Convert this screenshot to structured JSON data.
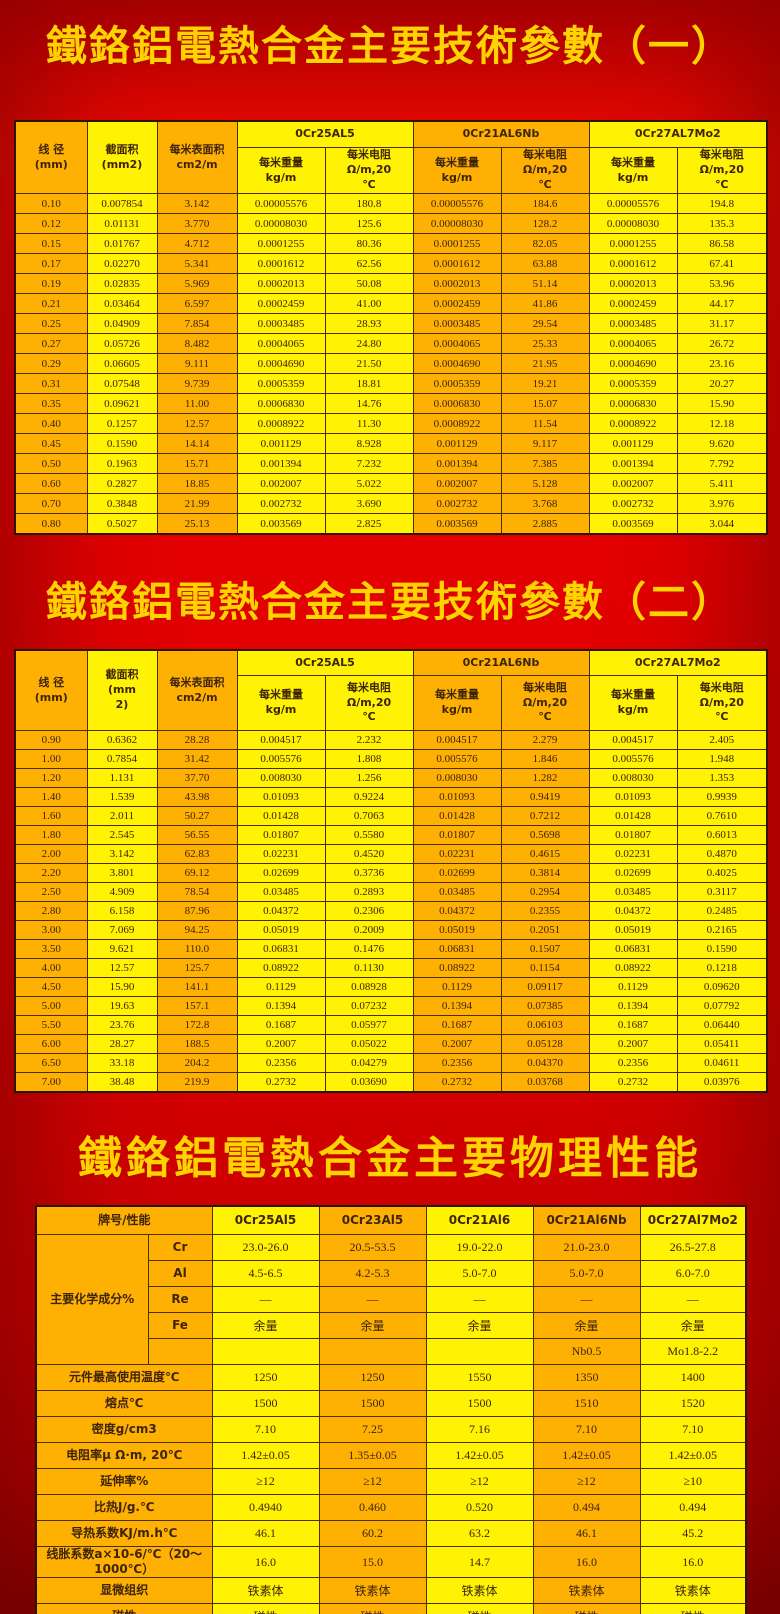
{
  "titles": {
    "t1": "鐵鉻鋁電熱合金主要技術參數（一）",
    "t2": "鐵鉻鋁電熱合金主要技術參數（二）",
    "t3": "鐵鉻鋁電熱合金主要物理性能"
  },
  "colors": {
    "background_red": "#df0000",
    "title_gold": "#ffd200",
    "cell_orange": "#ffb103",
    "cell_yellow": "#fff203",
    "text_brown": "#3e2409"
  },
  "table1": {
    "headers": {
      "diameter": "线 径\n(mm)",
      "area": "截面积\n(mm2)",
      "surface": "每米表面积\ncm2/m",
      "weight": "每米重量\nkg/m",
      "resistance": "每米电阻\nΩ/m,20\n℃"
    },
    "alloys": [
      "0Cr25AL5",
      "0Cr21AL6Nb",
      "0Cr27AL7Mo2"
    ],
    "rows": [
      [
        "0.10",
        "0.007854",
        "3.142",
        "0.00005576",
        "180.8",
        "0.00005576",
        "184.6",
        "0.00005576",
        "194.8"
      ],
      [
        "0.12",
        "0.01131",
        "3.770",
        "0.00008030",
        "125.6",
        "0.00008030",
        "128.2",
        "0.00008030",
        "135.3"
      ],
      [
        "0.15",
        "0.01767",
        "4.712",
        "0.0001255",
        "80.36",
        "0.0001255",
        "82.05",
        "0.0001255",
        "86.58"
      ],
      [
        "0.17",
        "0.02270",
        "5.341",
        "0.0001612",
        "62.56",
        "0.0001612",
        "63.88",
        "0.0001612",
        "67.41"
      ],
      [
        "0.19",
        "0.02835",
        "5.969",
        "0.0002013",
        "50.08",
        "0.0002013",
        "51.14",
        "0.0002013",
        "53.96"
      ],
      [
        "0.21",
        "0.03464",
        "6.597",
        "0.0002459",
        "41.00",
        "0.0002459",
        "41.86",
        "0.0002459",
        "44.17"
      ],
      [
        "0.25",
        "0.04909",
        "7.854",
        "0.0003485",
        "28.93",
        "0.0003485",
        "29.54",
        "0.0003485",
        "31.17"
      ],
      [
        "0.27",
        "0.05726",
        "8.482",
        "0.0004065",
        "24.80",
        "0.0004065",
        "25.33",
        "0.0004065",
        "26.72"
      ],
      [
        "0.29",
        "0.06605",
        "9.111",
        "0.0004690",
        "21.50",
        "0.0004690",
        "21.95",
        "0.0004690",
        "23.16"
      ],
      [
        "0.31",
        "0.07548",
        "9.739",
        "0.0005359",
        "18.81",
        "0.0005359",
        "19.21",
        "0.0005359",
        "20.27"
      ],
      [
        "0.35",
        "0.09621",
        "11.00",
        "0.0006830",
        "14.76",
        "0.0006830",
        "15.07",
        "0.0006830",
        "15.90"
      ],
      [
        "0.40",
        "0.1257",
        "12.57",
        "0.0008922",
        "11.30",
        "0.0008922",
        "11.54",
        "0.0008922",
        "12.18"
      ],
      [
        "0.45",
        "0.1590",
        "14.14",
        "0.001129",
        "8.928",
        "0.001129",
        "9.117",
        "0.001129",
        "9.620"
      ],
      [
        "0.50",
        "0.1963",
        "15.71",
        "0.001394",
        "7.232",
        "0.001394",
        "7.385",
        "0.001394",
        "7.792"
      ],
      [
        "0.60",
        "0.2827",
        "18.85",
        "0.002007",
        "5.022",
        "0.002007",
        "5.128",
        "0.002007",
        "5.411"
      ],
      [
        "0.70",
        "0.3848",
        "21.99",
        "0.002732",
        "3.690",
        "0.002732",
        "3.768",
        "0.002732",
        "3.976"
      ],
      [
        "0.80",
        "0.5027",
        "25.13",
        "0.003569",
        "2.825",
        "0.003569",
        "2.885",
        "0.003569",
        "3.044"
      ]
    ]
  },
  "table2": {
    "headers": {
      "diameter": "线 径\n(mm)",
      "area": "截面积\n(mm\n2)",
      "surface": "每米表面积\ncm2/m",
      "weight": "每米重量\nkg/m",
      "resistance": "每米电阻\nΩ/m,20\n℃"
    },
    "alloys": [
      "0Cr25AL5",
      "0Cr21AL6Nb",
      "0Cr27AL7Mo2"
    ],
    "rows": [
      [
        "0.90",
        "0.6362",
        "28.28",
        "0.004517",
        "2.232",
        "0.004517",
        "2.279",
        "0.004517",
        "2.405"
      ],
      [
        "1.00",
        "0.7854",
        "31.42",
        "0.005576",
        "1.808",
        "0.005576",
        "1.846",
        "0.005576",
        "1.948"
      ],
      [
        "1.20",
        "1.131",
        "37.70",
        "0.008030",
        "1.256",
        "0.008030",
        "1.282",
        "0.008030",
        "1.353"
      ],
      [
        "1.40",
        "1.539",
        "43.98",
        "0.01093",
        "0.9224",
        "0.01093",
        "0.9419",
        "0.01093",
        "0.9939"
      ],
      [
        "1.60",
        "2.011",
        "50.27",
        "0.01428",
        "0.7063",
        "0.01428",
        "0.7212",
        "0.01428",
        "0.7610"
      ],
      [
        "1.80",
        "2.545",
        "56.55",
        "0.01807",
        "0.5580",
        "0.01807",
        "0.5698",
        "0.01807",
        "0.6013"
      ],
      [
        "2.00",
        "3.142",
        "62.83",
        "0.02231",
        "0.4520",
        "0.02231",
        "0.4615",
        "0.02231",
        "0.4870"
      ],
      [
        "2.20",
        "3.801",
        "69.12",
        "0.02699",
        "0.3736",
        "0.02699",
        "0.3814",
        "0.02699",
        "0.4025"
      ],
      [
        "2.50",
        "4.909",
        "78.54",
        "0.03485",
        "0.2893",
        "0.03485",
        "0.2954",
        "0.03485",
        "0.3117"
      ],
      [
        "2.80",
        "6.158",
        "87.96",
        "0.04372",
        "0.2306",
        "0.04372",
        "0.2355",
        "0.04372",
        "0.2485"
      ],
      [
        "3.00",
        "7.069",
        "94.25",
        "0.05019",
        "0.2009",
        "0.05019",
        "0.2051",
        "0.05019",
        "0.2165"
      ],
      [
        "3.50",
        "9.621",
        "110.0",
        "0.06831",
        "0.1476",
        "0.06831",
        "0.1507",
        "0.06831",
        "0.1590"
      ],
      [
        "4.00",
        "12.57",
        "125.7",
        "0.08922",
        "0.1130",
        "0.08922",
        "0.1154",
        "0.08922",
        "0.1218"
      ],
      [
        "4.50",
        "15.90",
        "141.1",
        "0.1129",
        "0.08928",
        "0.1129",
        "0.09117",
        "0.1129",
        "0.09620"
      ],
      [
        "5.00",
        "19.63",
        "157.1",
        "0.1394",
        "0.07232",
        "0.1394",
        "0.07385",
        "0.1394",
        "0.07792"
      ],
      [
        "5.50",
        "23.76",
        "172.8",
        "0.1687",
        "0.05977",
        "0.1687",
        "0.06103",
        "0.1687",
        "0.06440"
      ],
      [
        "6.00",
        "28.27",
        "188.5",
        "0.2007",
        "0.05022",
        "0.2007",
        "0.05128",
        "0.2007",
        "0.05411"
      ],
      [
        "6.50",
        "33.18",
        "204.2",
        "0.2356",
        "0.04279",
        "0.2356",
        "0.04370",
        "0.2356",
        "0.04611"
      ],
      [
        "7.00",
        "38.48",
        "219.9",
        "0.2732",
        "0.03690",
        "0.2732",
        "0.03768",
        "0.2732",
        "0.03976"
      ]
    ]
  },
  "table3": {
    "header_label": "牌号/性能",
    "alloys": [
      "0Cr25Al5",
      "0Cr23Al5",
      "0Cr21Al6",
      "0Cr21Al6Nb",
      "0Cr27Al7Mo2"
    ],
    "chem_label": "主要化学成分%",
    "chem_rows": [
      {
        "element": "Cr",
        "values": [
          "23.0-26.0",
          "20.5-53.5",
          "19.0-22.0",
          "21.0-23.0",
          "26.5-27.8"
        ]
      },
      {
        "element": "Al",
        "values": [
          "4.5-6.5",
          "4.2-5.3",
          "5.0-7.0",
          "5.0-7.0",
          "6.0-7.0"
        ]
      },
      {
        "element": "Re",
        "values": [
          "—",
          "—",
          "—",
          "—",
          "—"
        ]
      },
      {
        "element": "Fe",
        "values": [
          "余量",
          "余量",
          "余量",
          "余量",
          "余量"
        ]
      },
      {
        "element": "",
        "values": [
          "",
          "",
          "",
          "Nb0.5",
          "Mo1.8-2.2"
        ]
      }
    ],
    "prop_rows": [
      {
        "label": "元件最高使用温度℃",
        "values": [
          "1250",
          "1250",
          "1550",
          "1350",
          "1400"
        ]
      },
      {
        "label": "熔点℃",
        "values": [
          "1500",
          "1500",
          "1500",
          "1510",
          "1520"
        ]
      },
      {
        "label": "密度g/cm3",
        "values": [
          "7.10",
          "7.25",
          "7.16",
          "7.10",
          "7.10"
        ]
      },
      {
        "label": "电阻率μ Ω·m, 20℃",
        "values": [
          "1.42±0.05",
          "1.35±0.05",
          "1.42±0.05",
          "1.42±0.05",
          "1.42±0.05"
        ]
      },
      {
        "label": "延伸率%",
        "values": [
          "≥12",
          "≥12",
          "≥12",
          "≥12",
          "≥10"
        ]
      },
      {
        "label": "比热J/g.℃",
        "values": [
          "0.4940",
          "0.460",
          "0.520",
          "0.494",
          "0.494"
        ]
      },
      {
        "label": "导热系数KJ/m.h℃",
        "values": [
          "46.1",
          "60.2",
          "63.2",
          "46.1",
          "45.2"
        ]
      },
      {
        "label": "线胀系数a×10-6/℃（20～\n1000℃）",
        "values": [
          "16.0",
          "15.0",
          "14.7",
          "16.0",
          "16.0"
        ]
      },
      {
        "label": "显微组织",
        "values": [
          "铁素体",
          "铁素体",
          "铁素体",
          "铁素体",
          "铁素体"
        ]
      },
      {
        "label": "磁性",
        "values": [
          "磁性",
          "磁性",
          "磁性",
          "磁性",
          "磁性"
        ]
      }
    ]
  }
}
